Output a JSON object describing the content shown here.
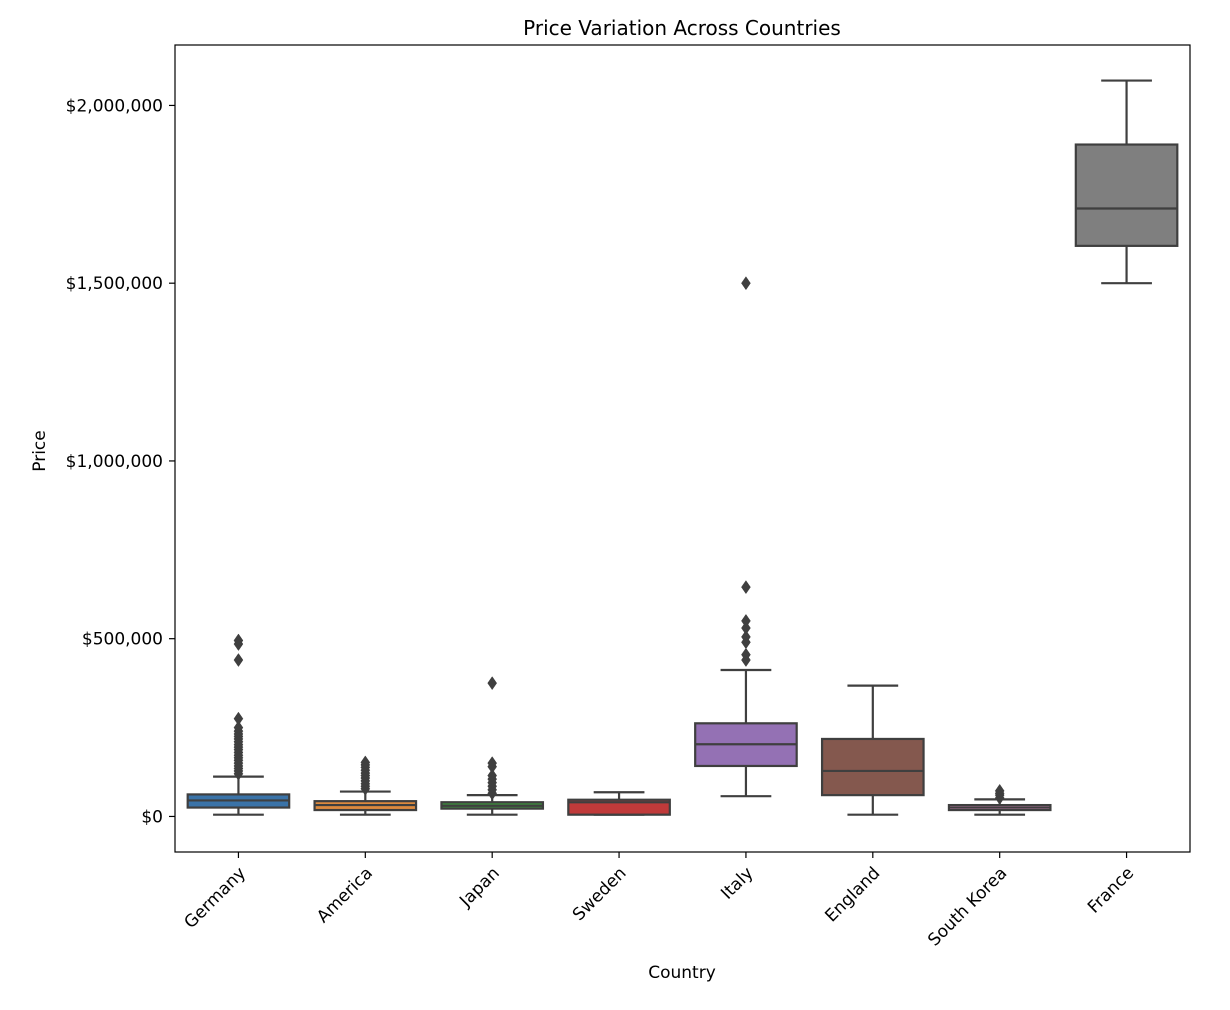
{
  "chart_data": {
    "type": "box",
    "title": "Price Variation Across Countries",
    "xlabel": "Country",
    "ylabel": "Price",
    "ylim": [
      -100000,
      2170000
    ],
    "yticks": [
      0,
      500000,
      1000000,
      1500000,
      2000000
    ],
    "ytick_labels": [
      "$0",
      "$500,000",
      "$1,000,000",
      "$1,500,000",
      "$2,000,000"
    ],
    "grid": false,
    "categories": [
      "Germany",
      "America",
      "Japan",
      "Sweden",
      "Italy",
      "England",
      "South Korea",
      "France"
    ],
    "series": [
      {
        "category": "Germany",
        "color": "#3a73a8",
        "whisker_low": 5000,
        "q1": 25000,
        "median": 45000,
        "q3": 62000,
        "whisker_high": 112000,
        "outliers": [
          120000,
          128000,
          135000,
          142000,
          150000,
          158000,
          165000,
          172000,
          180000,
          188000,
          195000,
          202000,
          210000,
          218000,
          225000,
          232000,
          240000,
          250000,
          275000,
          440000,
          485000,
          495000
        ]
      },
      {
        "category": "America",
        "color": "#dd8a3e",
        "whisker_low": 5000,
        "q1": 18000,
        "median": 32000,
        "q3": 43000,
        "whisker_high": 70000,
        "outliers": [
          78000,
          85000,
          92000,
          100000,
          108000,
          115000,
          122000,
          130000,
          138000,
          145000,
          152000
        ]
      },
      {
        "category": "Japan",
        "color": "#3d8d3d",
        "whisker_low": 5000,
        "q1": 22000,
        "median": 30000,
        "q3": 40000,
        "whisker_high": 60000,
        "outliers": [
          65000,
          75000,
          85000,
          95000,
          105000,
          115000,
          140000,
          150000,
          375000
        ]
      },
      {
        "category": "Sweden",
        "color": "#c03a3a",
        "whisker_low": 5000,
        "q1": 5000,
        "median": 40000,
        "q3": 47000,
        "whisker_high": 68000,
        "outliers": []
      },
      {
        "category": "Italy",
        "color": "#9471b4",
        "whisker_low": 57000,
        "q1": 142000,
        "median": 203000,
        "q3": 262000,
        "whisker_high": 412000,
        "outliers": [
          440000,
          455000,
          490000,
          505000,
          530000,
          550000,
          645000,
          1500000
        ]
      },
      {
        "category": "England",
        "color": "#84584e",
        "whisker_low": 5000,
        "q1": 60000,
        "median": 128000,
        "q3": 218000,
        "whisker_high": 368000,
        "outliers": []
      },
      {
        "category": "South Korea",
        "color": "#d684bd",
        "whisker_low": 5000,
        "q1": 18000,
        "median": 25000,
        "q3": 32000,
        "whisker_high": 48000,
        "outliers": [
          52000,
          60000,
          65000,
          72000
        ]
      },
      {
        "category": "France",
        "color": "#7f7f7f",
        "whisker_low": 1500000,
        "q1": 1605000,
        "median": 1710000,
        "q3": 1890000,
        "whisker_high": 2070000,
        "outliers": []
      }
    ]
  }
}
